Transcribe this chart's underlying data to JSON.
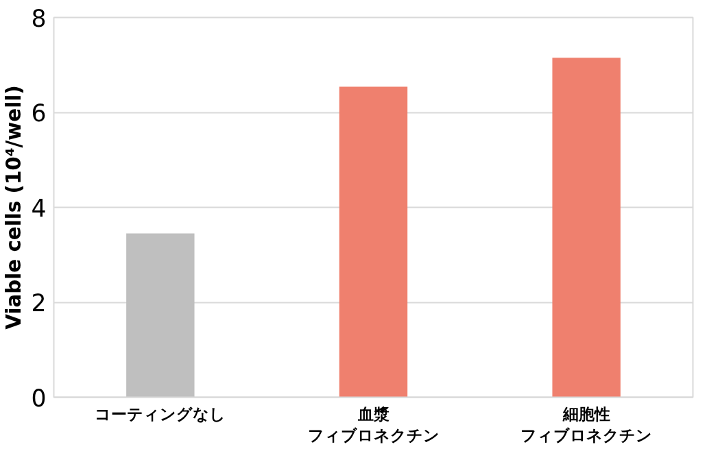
{
  "chart_data": {
    "type": "bar",
    "ylabel": "Viable cells (10⁴/well)",
    "categories": [
      "コーティングなし",
      "血漿フィブロネクチン",
      "細胞性フィブロネクチン"
    ],
    "values": [
      3.45,
      6.54,
      7.15
    ],
    "colors": [
      "#bfbfbf",
      "#ef806e",
      "#ef806e"
    ],
    "ylim": [
      0,
      8
    ],
    "yticks": [
      0,
      2,
      4,
      6,
      8
    ],
    "grid": "y"
  }
}
